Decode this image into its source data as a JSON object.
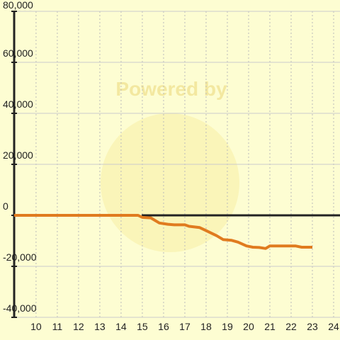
{
  "chart_data": {
    "type": "line",
    "watermark": "Powered by",
    "xlim": [
      8.97,
      24.3
    ],
    "ylim": [
      -40000,
      80000
    ],
    "xticks": [
      10,
      11,
      12,
      13,
      14,
      15,
      16,
      17,
      18,
      19,
      20,
      21,
      22,
      23,
      24
    ],
    "yticks": [
      {
        "value": -40000,
        "label": "-40,000"
      },
      {
        "value": -20000,
        "label": "-20,000"
      },
      0,
      {
        "value": 20000,
        "label": "20,000"
      },
      {
        "value": 40000,
        "label": "40,000"
      },
      {
        "value": 60000,
        "label": "60,000"
      },
      {
        "value": 80000,
        "label": "80,000"
      }
    ],
    "grid": true,
    "series": [
      {
        "color": "#222222",
        "width": 3,
        "x": [
          14.97,
          24.3
        ],
        "values": [
          0,
          0
        ]
      },
      {
        "color": "#e07b1f",
        "width": 4,
        "x": [
          8.97,
          14.8,
          15,
          15.4,
          15.8,
          16.2,
          16.5,
          17,
          17.2,
          17.7,
          18,
          18.5,
          18.8,
          19.2,
          19.5,
          19.9,
          20.2,
          20.5,
          20.8,
          21,
          21.5,
          22.2,
          22.5,
          23
        ],
        "values": [
          0,
          0,
          -800,
          -1000,
          -3000,
          -3500,
          -3700,
          -3700,
          -4300,
          -4800,
          -6000,
          -8000,
          -9500,
          -9800,
          -10500,
          -12000,
          -12500,
          -12600,
          -13000,
          -12000,
          -12000,
          -12000,
          -12500,
          -12500
        ]
      }
    ]
  }
}
